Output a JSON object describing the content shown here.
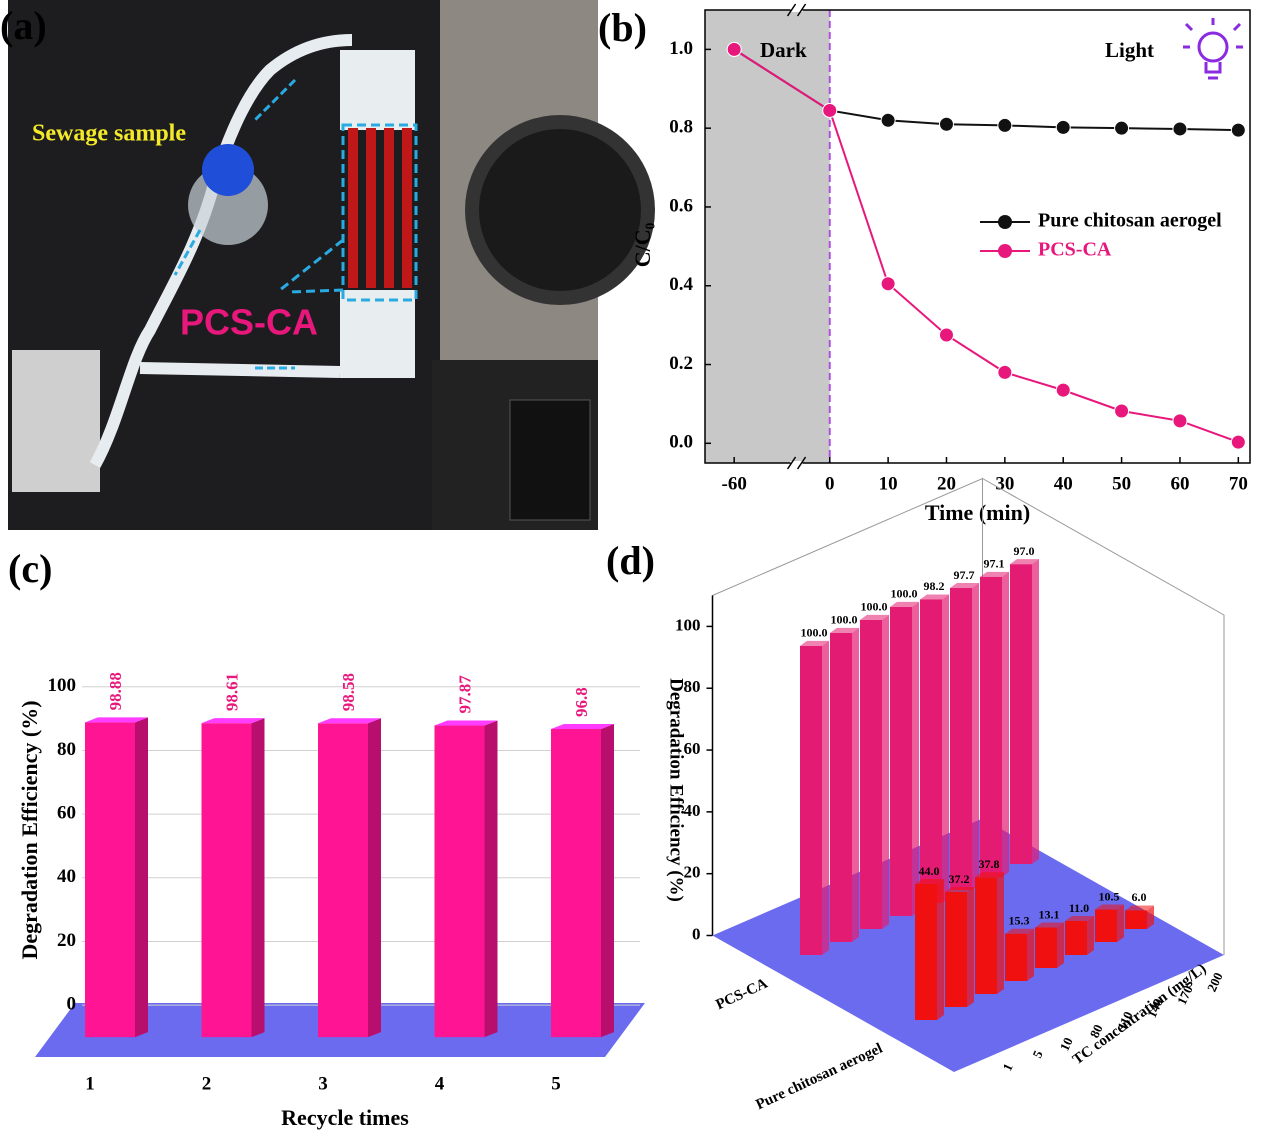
{
  "photo": {
    "panel_label": "(a)",
    "annotations": [
      "Sewage sample",
      "PCS-CA"
    ]
  },
  "chart_data": [
    {
      "type": "line",
      "panel_label": "(b)",
      "x_label": "Time (min)",
      "y_label": "C/C₀",
      "x": [
        -60,
        0,
        10,
        20,
        30,
        40,
        50,
        60,
        70
      ],
      "xlim": [
        -65,
        72
      ],
      "xbreak": [
        -50,
        -5
      ],
      "xticks": [
        -60,
        0,
        10,
        20,
        30,
        40,
        50,
        60,
        70
      ],
      "ylim": [
        -0.05,
        1.1
      ],
      "yticks": [
        {
          "value": 0,
          "label": "0.0"
        },
        {
          "value": 0.2,
          "label": "0.2"
        },
        {
          "value": 0.4,
          "label": "0.4"
        },
        {
          "value": 0.6,
          "label": "0.6"
        },
        {
          "value": 0.8,
          "label": "0.8"
        },
        {
          "value": 1,
          "label": "1.0"
        }
      ],
      "light_on": 0,
      "annotations": [
        "Dark",
        "Light"
      ],
      "legend": "right",
      "series": [
        {
          "name": "Pure chitosan aerogel",
          "color": "#111111",
          "values": [
            1.0,
            0.845,
            0.82,
            0.81,
            0.807,
            0.802,
            0.8,
            0.798,
            0.795
          ]
        },
        {
          "name": "PCS-CA",
          "color": "#e8177c",
          "values": [
            1.0,
            0.845,
            0.405,
            0.275,
            0.18,
            0.135,
            0.082,
            0.057,
            0.003
          ]
        }
      ]
    },
    {
      "type": "bar3d",
      "panel_label": "(c)",
      "x_label": "Recycle times",
      "y_label": "Degradation Efficiency (%)",
      "categories": [
        "1",
        "2",
        "3",
        "4",
        "5"
      ],
      "values": [
        98.88,
        98.61,
        98.58,
        97.87,
        96.8
      ],
      "color": "#ff1493",
      "ylim": [
        -10,
        115
      ],
      "yticks": [
        0,
        20,
        40,
        60,
        80,
        100
      ],
      "grid": true
    },
    {
      "type": "bar3d_grouped",
      "panel_label": "(d)",
      "x_label": "TC concentration (mg/L)",
      "y_label": "Degradation Efficiency (%)",
      "categories": [
        "1",
        "5",
        "10",
        "80",
        "110",
        "140",
        "170",
        "200"
      ],
      "ylim": [
        0,
        110
      ],
      "yticks": [
        0,
        20,
        40,
        60,
        80,
        100
      ],
      "series": [
        {
          "name": "PCS-CA",
          "color": "#e41b72",
          "values": [
            100,
            100,
            100,
            100,
            98.2,
            97.7,
            97.1,
            97
          ],
          "value_labels": [
            "100.0",
            "100.0",
            "100.0",
            "100.0",
            "98.2",
            "97.7",
            "97.1",
            "97.0"
          ]
        },
        {
          "name": "Pure chitosan aerogel",
          "color": "#f01010",
          "values": [
            44,
            37.2,
            37.8,
            15.3,
            13.1,
            11,
            10.5,
            6
          ],
          "value_labels": [
            "44.0",
            "37.2",
            "37.8",
            "15.3",
            "13.1",
            "11.0",
            "10.5",
            "6.0"
          ]
        }
      ]
    }
  ]
}
